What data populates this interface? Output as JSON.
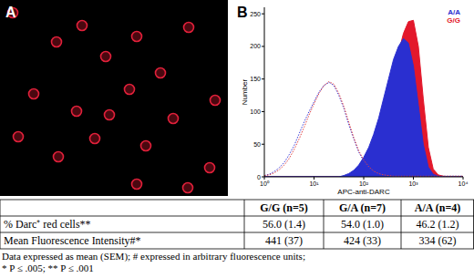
{
  "panel_a": {
    "label": "A"
  },
  "chart_data": {
    "type": "area",
    "label": "B",
    "x_label": "APC-anti-DARC",
    "y_label": "Number",
    "log": "x",
    "xlim": [
      1,
      10000
    ],
    "xticks": [
      {
        "value": 1,
        "label": "10⁰"
      },
      {
        "value": 10,
        "label": "10¹"
      },
      {
        "value": 100,
        "label": "10²"
      },
      {
        "value": 1000,
        "label": "10³"
      },
      {
        "value": 10000,
        "label": "10⁴"
      }
    ],
    "ylim": [
      0,
      260
    ],
    "yticks": [
      0,
      50,
      100,
      150,
      200,
      250
    ],
    "legend": "upper right",
    "x": [
      1,
      1.26,
      1.58,
      2,
      2.51,
      3.16,
      3.98,
      5.01,
      6.31,
      7.94,
      10,
      12.6,
      15.8,
      20,
      25.1,
      31.6,
      39.8,
      50.1,
      63.1,
      79.4,
      100,
      126,
      158,
      200,
      251,
      316,
      398,
      501,
      631,
      794,
      1000,
      1260,
      1580,
      2000,
      2510,
      3160,
      3980,
      5010,
      6310,
      7940,
      10000
    ],
    "series": [
      {
        "name": "A/A",
        "type": "area",
        "color": "#2a2fd0",
        "values": [
          0,
          0,
          0,
          0,
          0,
          0,
          0,
          0,
          0,
          0,
          0,
          0,
          0,
          0,
          0,
          0,
          2,
          5,
          10,
          18,
          30,
          45,
          65,
          90,
          120,
          150,
          180,
          200,
          212,
          205,
          170,
          110,
          50,
          15,
          4,
          1,
          0,
          0,
          0,
          0,
          0
        ]
      },
      {
        "name": "G/G",
        "type": "area",
        "color": "#e3182b",
        "values": [
          0,
          0,
          0,
          0,
          0,
          0,
          0,
          0,
          0,
          0,
          0,
          0,
          0,
          0,
          0,
          0,
          0,
          2,
          5,
          10,
          18,
          30,
          45,
          65,
          90,
          120,
          155,
          190,
          220,
          238,
          240,
          200,
          120,
          45,
          12,
          3,
          1,
          0,
          0,
          0,
          0
        ]
      },
      {
        "type": "line",
        "line_style": "dotted",
        "color": "#3a3ad8",
        "values": [
          2,
          4,
          8,
          14,
          22,
          34,
          48,
          66,
          84,
          100,
          115,
          130,
          140,
          145,
          140,
          125,
          105,
          80,
          58,
          38,
          24,
          14,
          8,
          5,
          3,
          2,
          1,
          1,
          1,
          1,
          1,
          1,
          1,
          1,
          1,
          1,
          1,
          1,
          1,
          1,
          1
        ]
      },
      {
        "type": "line",
        "line_style": "dotted",
        "color": "#e04040",
        "values": [
          2,
          3,
          6,
          11,
          18,
          28,
          42,
          58,
          76,
          95,
          112,
          128,
          140,
          146,
          142,
          128,
          108,
          84,
          60,
          40,
          26,
          16,
          9,
          5,
          3,
          2,
          1,
          1,
          1,
          1,
          1,
          1,
          1,
          1,
          1,
          1,
          1,
          1,
          1,
          1,
          1
        ]
      }
    ]
  },
  "table": {
    "header": [
      "G/G (n=5)",
      "G/A (n=7)",
      "A/A (n=4)"
    ],
    "rows": [
      {
        "label": "% Darc⁺ red cells**",
        "cells": [
          "56.0 (1.4)",
          "54.0 (1.0)",
          "46.2 (1.2)"
        ]
      },
      {
        "label": "Mean Fluorescence Intensity#*",
        "cells": [
          "441 (37)",
          "424 (33)",
          "334 (62)"
        ]
      }
    ]
  },
  "notes": [
    "Data expressed as mean (SEM); # expressed in arbitrary fluorescence units;",
    "* P ≤ .005; ** P ≤ .001"
  ]
}
